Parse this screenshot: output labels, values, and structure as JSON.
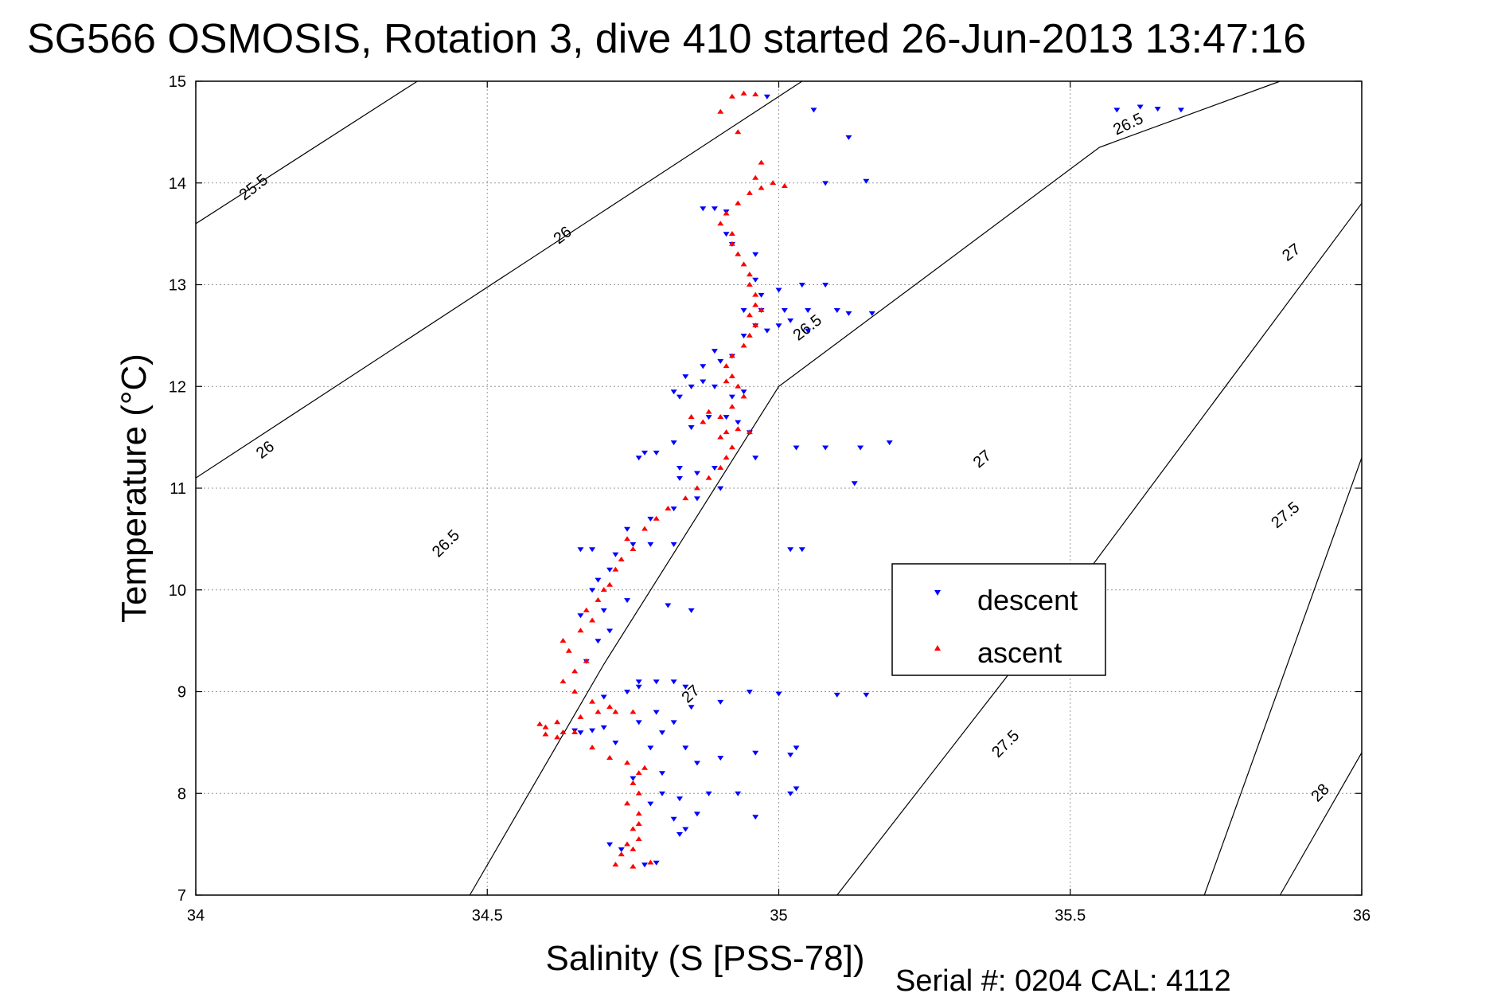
{
  "figure": {
    "title": "SG566 OSMOSIS, Rotation 3, dive 410 started 26-Jun-2013 13:47:16",
    "footer": "Serial #: 0204  CAL: 4112"
  },
  "chart_data": {
    "type": "scatter",
    "xlabel": "Salinity (S [PSS-78])",
    "ylabel": "Temperature (°C)",
    "xlim": [
      34,
      36
    ],
    "ylim": [
      7,
      15
    ],
    "xticks": [
      34,
      34.5,
      35,
      35.5,
      36
    ],
    "xtick_labels": [
      "34",
      "34.5",
      "35",
      "35.5",
      "36"
    ],
    "yticks": [
      7,
      8,
      9,
      10,
      11,
      12,
      13,
      14,
      15
    ],
    "ytick_labels": [
      "7",
      "8",
      "9",
      "10",
      "11",
      "12",
      "13",
      "14",
      "15"
    ],
    "grid": true,
    "legend": {
      "position": "right-center",
      "entries": [
        "descent",
        "ascent"
      ]
    },
    "contours": [
      {
        "label": "25.5",
        "points": [
          [
            34.0,
            13.6
          ],
          [
            34.38,
            15.0
          ]
        ]
      },
      {
        "label": "26",
        "points": [
          [
            34.0,
            11.1
          ],
          [
            35.04,
            15.0
          ]
        ]
      },
      {
        "label": "26.5",
        "points": [
          [
            34.47,
            7.0
          ],
          [
            34.7,
            9.27
          ],
          [
            35.0,
            12.0
          ],
          [
            35.55,
            14.35
          ],
          [
            35.86,
            15.0
          ]
        ]
      },
      {
        "label": "27",
        "points": [
          [
            35.1,
            7.0
          ],
          [
            35.5,
            9.95
          ],
          [
            36.0,
            13.8
          ]
        ]
      },
      {
        "label": "27.5",
        "points": [
          [
            35.73,
            7.0
          ],
          [
            36.0,
            11.3
          ]
        ]
      },
      {
        "label": "28",
        "points": [
          [
            35.86,
            7.0
          ],
          [
            36.0,
            8.4
          ]
        ]
      }
    ],
    "contour_labels": [
      {
        "text": "25.5",
        "x": 34.1,
        "y": 13.95,
        "angle": -38
      },
      {
        "text": "26",
        "x": 34.63,
        "y": 13.48,
        "angle": -38
      },
      {
        "text": "26",
        "x": 34.12,
        "y": 11.37,
        "angle": -38
      },
      {
        "text": "26.5",
        "x": 34.43,
        "y": 10.45,
        "angle": -45
      },
      {
        "text": "26.5",
        "x": 35.6,
        "y": 14.57,
        "angle": -25
      },
      {
        "text": "26.5",
        "x": 35.05,
        "y": 12.57,
        "angle": -38
      },
      {
        "text": "27",
        "x": 35.88,
        "y": 13.31,
        "angle": -36
      },
      {
        "text": "27",
        "x": 35.35,
        "y": 11.28,
        "angle": -40
      },
      {
        "text": "27",
        "x": 34.85,
        "y": 8.97,
        "angle": -42
      },
      {
        "text": "27.5",
        "x": 35.87,
        "y": 10.73,
        "angle": -40
      },
      {
        "text": "27.5",
        "x": 35.39,
        "y": 8.48,
        "angle": -45
      },
      {
        "text": "28",
        "x": 35.93,
        "y": 8.0,
        "angle": -45
      }
    ],
    "series": [
      {
        "name": "descent",
        "color": "#0000ff",
        "marker": "triangle-down",
        "points": [
          [
            34.77,
            7.3
          ],
          [
            34.79,
            7.32
          ],
          [
            34.73,
            7.45
          ],
          [
            34.71,
            7.5
          ],
          [
            34.83,
            7.6
          ],
          [
            34.84,
            7.65
          ],
          [
            34.82,
            7.75
          ],
          [
            34.86,
            7.8
          ],
          [
            34.96,
            7.77
          ],
          [
            34.78,
            7.9
          ],
          [
            34.8,
            8.0
          ],
          [
            34.83,
            7.95
          ],
          [
            34.88,
            8.0
          ],
          [
            34.93,
            8.0
          ],
          [
            35.03,
            8.05
          ],
          [
            35.02,
            8.0
          ],
          [
            34.75,
            8.15
          ],
          [
            34.8,
            8.2
          ],
          [
            34.86,
            8.3
          ],
          [
            34.9,
            8.35
          ],
          [
            34.96,
            8.4
          ],
          [
            35.03,
            8.45
          ],
          [
            35.02,
            8.38
          ],
          [
            34.78,
            8.45
          ],
          [
            34.84,
            8.45
          ],
          [
            34.72,
            8.5
          ],
          [
            34.8,
            8.6
          ],
          [
            34.66,
            8.6
          ],
          [
            34.65,
            8.62
          ],
          [
            34.68,
            8.62
          ],
          [
            34.7,
            8.65
          ],
          [
            34.76,
            8.7
          ],
          [
            34.82,
            8.7
          ],
          [
            34.79,
            8.8
          ],
          [
            34.85,
            8.85
          ],
          [
            34.9,
            8.9
          ],
          [
            34.7,
            8.95
          ],
          [
            34.74,
            9.0
          ],
          [
            34.76,
            9.05
          ],
          [
            34.79,
            9.1
          ],
          [
            34.82,
            9.1
          ],
          [
            34.84,
            9.05
          ],
          [
            34.76,
            9.1
          ],
          [
            34.95,
            9.0
          ],
          [
            35.0,
            8.98
          ],
          [
            35.1,
            8.97
          ],
          [
            35.15,
            8.97
          ],
          [
            34.67,
            9.3
          ],
          [
            34.69,
            9.5
          ],
          [
            34.71,
            9.6
          ],
          [
            34.66,
            9.75
          ],
          [
            34.7,
            9.8
          ],
          [
            34.74,
            9.9
          ],
          [
            34.81,
            9.85
          ],
          [
            34.85,
            9.8
          ],
          [
            34.68,
            10.0
          ],
          [
            34.69,
            10.1
          ],
          [
            34.71,
            10.2
          ],
          [
            34.66,
            10.4
          ],
          [
            34.68,
            10.4
          ],
          [
            34.72,
            10.35
          ],
          [
            34.75,
            10.45
          ],
          [
            34.78,
            10.45
          ],
          [
            34.82,
            10.45
          ],
          [
            35.02,
            10.4
          ],
          [
            35.04,
            10.4
          ],
          [
            34.74,
            10.6
          ],
          [
            34.78,
            10.7
          ],
          [
            34.82,
            10.8
          ],
          [
            34.86,
            10.9
          ],
          [
            34.9,
            11.0
          ],
          [
            34.83,
            11.1
          ],
          [
            34.86,
            11.15
          ],
          [
            34.89,
            11.2
          ],
          [
            34.83,
            11.2
          ],
          [
            34.77,
            11.35
          ],
          [
            34.76,
            11.3
          ],
          [
            34.79,
            11.35
          ],
          [
            34.82,
            11.45
          ],
          [
            34.85,
            11.6
          ],
          [
            34.88,
            11.7
          ],
          [
            34.91,
            11.7
          ],
          [
            34.93,
            11.65
          ],
          [
            34.95,
            11.55
          ],
          [
            35.03,
            11.4
          ],
          [
            35.08,
            11.4
          ],
          [
            35.14,
            11.4
          ],
          [
            35.19,
            11.45
          ],
          [
            34.96,
            11.3
          ],
          [
            35.13,
            11.05
          ],
          [
            34.82,
            11.95
          ],
          [
            34.83,
            11.9
          ],
          [
            34.85,
            12.0
          ],
          [
            34.87,
            12.05
          ],
          [
            34.89,
            12.0
          ],
          [
            34.92,
            11.9
          ],
          [
            34.94,
            11.95
          ],
          [
            34.84,
            12.1
          ],
          [
            34.87,
            12.2
          ],
          [
            34.9,
            12.25
          ],
          [
            34.92,
            12.3
          ],
          [
            34.89,
            12.35
          ],
          [
            34.94,
            12.5
          ],
          [
            34.96,
            12.6
          ],
          [
            34.98,
            12.55
          ],
          [
            35.0,
            12.6
          ],
          [
            35.02,
            12.65
          ],
          [
            35.05,
            12.55
          ],
          [
            34.94,
            12.75
          ],
          [
            34.97,
            12.75
          ],
          [
            35.01,
            12.75
          ],
          [
            35.05,
            12.75
          ],
          [
            35.1,
            12.75
          ],
          [
            35.12,
            12.72
          ],
          [
            35.16,
            12.72
          ],
          [
            34.97,
            12.9
          ],
          [
            35.0,
            12.95
          ],
          [
            35.04,
            13.0
          ],
          [
            35.08,
            13.0
          ],
          [
            34.96,
            13.05
          ],
          [
            34.96,
            13.3
          ],
          [
            34.92,
            13.4
          ],
          [
            34.91,
            13.5
          ],
          [
            34.87,
            13.75
          ],
          [
            34.89,
            13.75
          ],
          [
            34.91,
            13.72
          ],
          [
            35.08,
            14.0
          ],
          [
            35.15,
            14.02
          ],
          [
            35.12,
            14.45
          ],
          [
            35.06,
            14.72
          ],
          [
            34.98,
            14.85
          ],
          [
            35.58,
            14.72
          ],
          [
            35.62,
            14.75
          ],
          [
            35.65,
            14.73
          ],
          [
            35.69,
            14.72
          ]
        ]
      },
      {
        "name": "ascent",
        "color": "#ff0000",
        "marker": "triangle-up",
        "points": [
          [
            34.72,
            7.3
          ],
          [
            34.75,
            7.28
          ],
          [
            34.78,
            7.32
          ],
          [
            34.73,
            7.4
          ],
          [
            34.75,
            7.45
          ],
          [
            34.74,
            7.5
          ],
          [
            34.76,
            7.55
          ],
          [
            34.75,
            7.65
          ],
          [
            34.76,
            7.7
          ],
          [
            34.76,
            7.8
          ],
          [
            34.74,
            7.9
          ],
          [
            34.76,
            8.0
          ],
          [
            34.75,
            8.1
          ],
          [
            34.76,
            8.2
          ],
          [
            34.77,
            8.25
          ],
          [
            34.74,
            8.3
          ],
          [
            34.71,
            8.35
          ],
          [
            34.68,
            8.45
          ],
          [
            34.62,
            8.55
          ],
          [
            34.6,
            8.58
          ],
          [
            34.63,
            8.6
          ],
          [
            34.65,
            8.6
          ],
          [
            34.6,
            8.65
          ],
          [
            34.59,
            8.68
          ],
          [
            34.62,
            8.7
          ],
          [
            34.66,
            8.75
          ],
          [
            34.69,
            8.8
          ],
          [
            34.72,
            8.8
          ],
          [
            34.75,
            8.8
          ],
          [
            34.71,
            8.85
          ],
          [
            34.68,
            8.9
          ],
          [
            34.65,
            9.0
          ],
          [
            34.63,
            9.1
          ],
          [
            34.65,
            9.2
          ],
          [
            34.67,
            9.3
          ],
          [
            34.64,
            9.4
          ],
          [
            34.63,
            9.5
          ],
          [
            34.66,
            9.6
          ],
          [
            34.68,
            9.7
          ],
          [
            34.67,
            9.8
          ],
          [
            34.69,
            9.9
          ],
          [
            34.7,
            10.0
          ],
          [
            34.71,
            10.05
          ],
          [
            34.72,
            10.2
          ],
          [
            34.73,
            10.3
          ],
          [
            34.75,
            10.4
          ],
          [
            34.74,
            10.5
          ],
          [
            34.77,
            10.6
          ],
          [
            34.79,
            10.7
          ],
          [
            34.81,
            10.8
          ],
          [
            34.84,
            10.9
          ],
          [
            34.86,
            11.0
          ],
          [
            34.88,
            11.1
          ],
          [
            34.9,
            11.2
          ],
          [
            34.91,
            11.3
          ],
          [
            34.92,
            11.4
          ],
          [
            34.9,
            11.5
          ],
          [
            34.91,
            11.55
          ],
          [
            34.93,
            11.58
          ],
          [
            34.95,
            11.55
          ],
          [
            34.87,
            11.65
          ],
          [
            34.85,
            11.7
          ],
          [
            34.88,
            11.75
          ],
          [
            34.9,
            11.7
          ],
          [
            34.92,
            11.8
          ],
          [
            34.94,
            11.9
          ],
          [
            34.93,
            12.0
          ],
          [
            34.91,
            12.05
          ],
          [
            34.92,
            12.1
          ],
          [
            34.91,
            12.2
          ],
          [
            34.92,
            12.3
          ],
          [
            34.94,
            12.4
          ],
          [
            34.95,
            12.5
          ],
          [
            34.96,
            12.6
          ],
          [
            34.95,
            12.7
          ],
          [
            34.97,
            12.75
          ],
          [
            34.96,
            12.8
          ],
          [
            34.96,
            12.9
          ],
          [
            34.95,
            13.0
          ],
          [
            34.95,
            13.1
          ],
          [
            34.94,
            13.2
          ],
          [
            34.93,
            13.3
          ],
          [
            34.92,
            13.4
          ],
          [
            34.92,
            13.5
          ],
          [
            34.9,
            13.6
          ],
          [
            34.91,
            13.7
          ],
          [
            34.93,
            13.8
          ],
          [
            34.95,
            13.9
          ],
          [
            34.97,
            13.95
          ],
          [
            34.99,
            14.0
          ],
          [
            35.01,
            13.97
          ],
          [
            34.96,
            14.05
          ],
          [
            34.97,
            14.2
          ],
          [
            34.93,
            14.5
          ],
          [
            34.9,
            14.7
          ],
          [
            34.92,
            14.85
          ],
          [
            34.94,
            14.88
          ],
          [
            34.96,
            14.87
          ]
        ]
      }
    ]
  }
}
